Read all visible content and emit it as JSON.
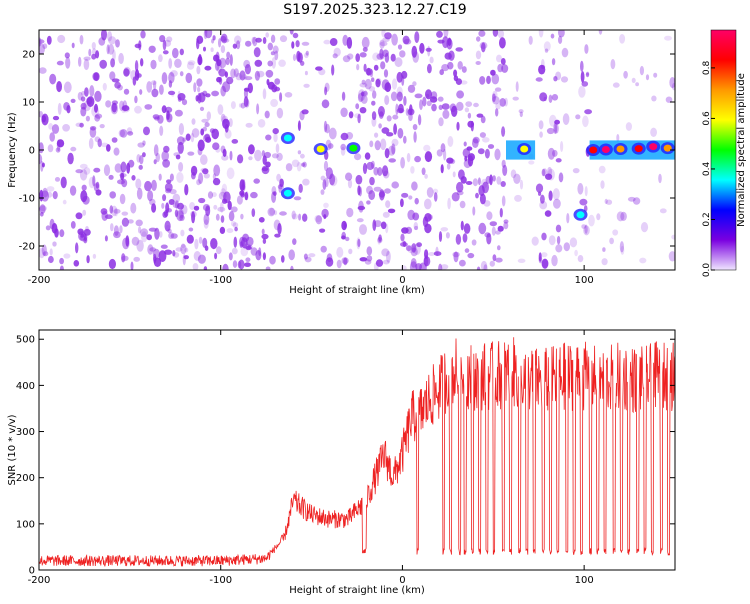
{
  "title": "S197.2025.323.12.27.C19",
  "chart_data": [
    {
      "type": "heatmap",
      "xlabel": "Height of straight line (km)",
      "ylabel": "Frequency (Hz)",
      "xlim": [
        -200,
        150
      ],
      "ylim": [
        -25,
        25
      ],
      "x_ticks": [
        -200,
        -100,
        0,
        100
      ],
      "y_ticks": [
        -20,
        -10,
        0,
        10,
        20
      ],
      "grid": false,
      "colorbar": {
        "label": "Normalized spectral amplitude",
        "range": [
          0,
          0.95
        ],
        "ticks": [
          0.0,
          0.2,
          0.4,
          0.6,
          0.8
        ],
        "colormap": [
          "#f0e6ff",
          "#7a00e0",
          "#0000ff",
          "#00ffff",
          "#00ff00",
          "#ffff00",
          "#ff9900",
          "#ff0000",
          "#ff0066"
        ]
      },
      "background_noise_color": "#8a2be2",
      "blank_gaps_x": [
        [
          -65,
          -61
        ],
        [
          -52,
          -46
        ],
        [
          -37,
          -33
        ],
        [
          -28,
          -25
        ],
        [
          57,
          75
        ],
        [
          88,
          98
        ],
        [
          103,
          150
        ]
      ],
      "signal_features": [
        {
          "x": -63,
          "y": 2.5,
          "amplitude": 0.35
        },
        {
          "x": -45,
          "y": 0.2,
          "amplitude": 0.55
        },
        {
          "x": -27,
          "y": 0.4,
          "amplitude": 0.5
        },
        {
          "x": -63,
          "y": -9,
          "amplitude": 0.3
        },
        {
          "x": 67,
          "y": 0.2,
          "amplitude": 0.65
        },
        {
          "x": 98,
          "y": -13.5,
          "amplitude": 0.35
        },
        {
          "x": 105,
          "y": 0.0,
          "amplitude": 0.85
        },
        {
          "x": 112,
          "y": 0.1,
          "amplitude": 0.9
        },
        {
          "x": 120,
          "y": 0.2,
          "amplitude": 0.75
        },
        {
          "x": 130,
          "y": 0.3,
          "amplitude": 0.8
        },
        {
          "x": 138,
          "y": 0.7,
          "amplitude": 0.95
        },
        {
          "x": 146,
          "y": 0.4,
          "amplitude": 0.7
        }
      ]
    },
    {
      "type": "line",
      "xlabel": "Height of straight line (km)",
      "ylabel": "SNR (10 * v/v)",
      "xlim": [
        -200,
        150
      ],
      "ylim": [
        0,
        520
      ],
      "x_ticks": [
        -200,
        -100,
        0,
        100
      ],
      "y_ticks": [
        0,
        100,
        200,
        300,
        400,
        500
      ],
      "grid": false,
      "series": [
        {
          "color": "#ee2222",
          "envelope": {
            "x": [
              -200,
              -150,
              -100,
              -75,
              -65,
              -60,
              -50,
              -40,
              -30,
              -20,
              -10,
              -5,
              0,
              5,
              10,
              15,
              20,
              25,
              30,
              40,
              50,
              60,
              70,
              80,
              90,
              100,
              110,
              120,
              130,
              140,
              150
            ],
            "y": [
              20,
              20,
              20,
              25,
              70,
              150,
              120,
              110,
              110,
              150,
              250,
              200,
              250,
              330,
              340,
              370,
              390,
              420,
              430,
              420,
              420,
              430,
              410,
              410,
              420,
              420,
              410,
              420,
              410,
              420,
              420
            ]
          },
          "dropouts_x": [
            [
              -22,
              -20
            ],
            [
              8,
              9
            ],
            [
              22,
              23
            ],
            [
              26,
              27
            ],
            [
              31,
              32
            ],
            [
              34,
              35
            ],
            [
              38,
              39
            ],
            [
              42,
              43
            ],
            [
              46,
              47
            ],
            [
              50,
              51
            ],
            [
              55,
              56
            ],
            [
              59,
              60
            ],
            [
              64,
              65
            ],
            [
              68,
              69
            ],
            [
              72,
              73
            ],
            [
              77,
              78
            ],
            [
              81,
              82
            ],
            [
              85,
              86
            ],
            [
              90,
              91
            ],
            [
              94,
              95
            ],
            [
              98,
              99
            ],
            [
              103,
              104
            ],
            [
              107,
              108
            ],
            [
              111,
              112
            ],
            [
              116,
              117
            ],
            [
              120,
              121
            ],
            [
              124,
              125
            ],
            [
              129,
              130
            ],
            [
              133,
              134
            ],
            [
              137,
              138
            ],
            [
              142,
              143
            ],
            [
              146,
              147
            ]
          ],
          "dropout_value": 40
        }
      ]
    }
  ]
}
